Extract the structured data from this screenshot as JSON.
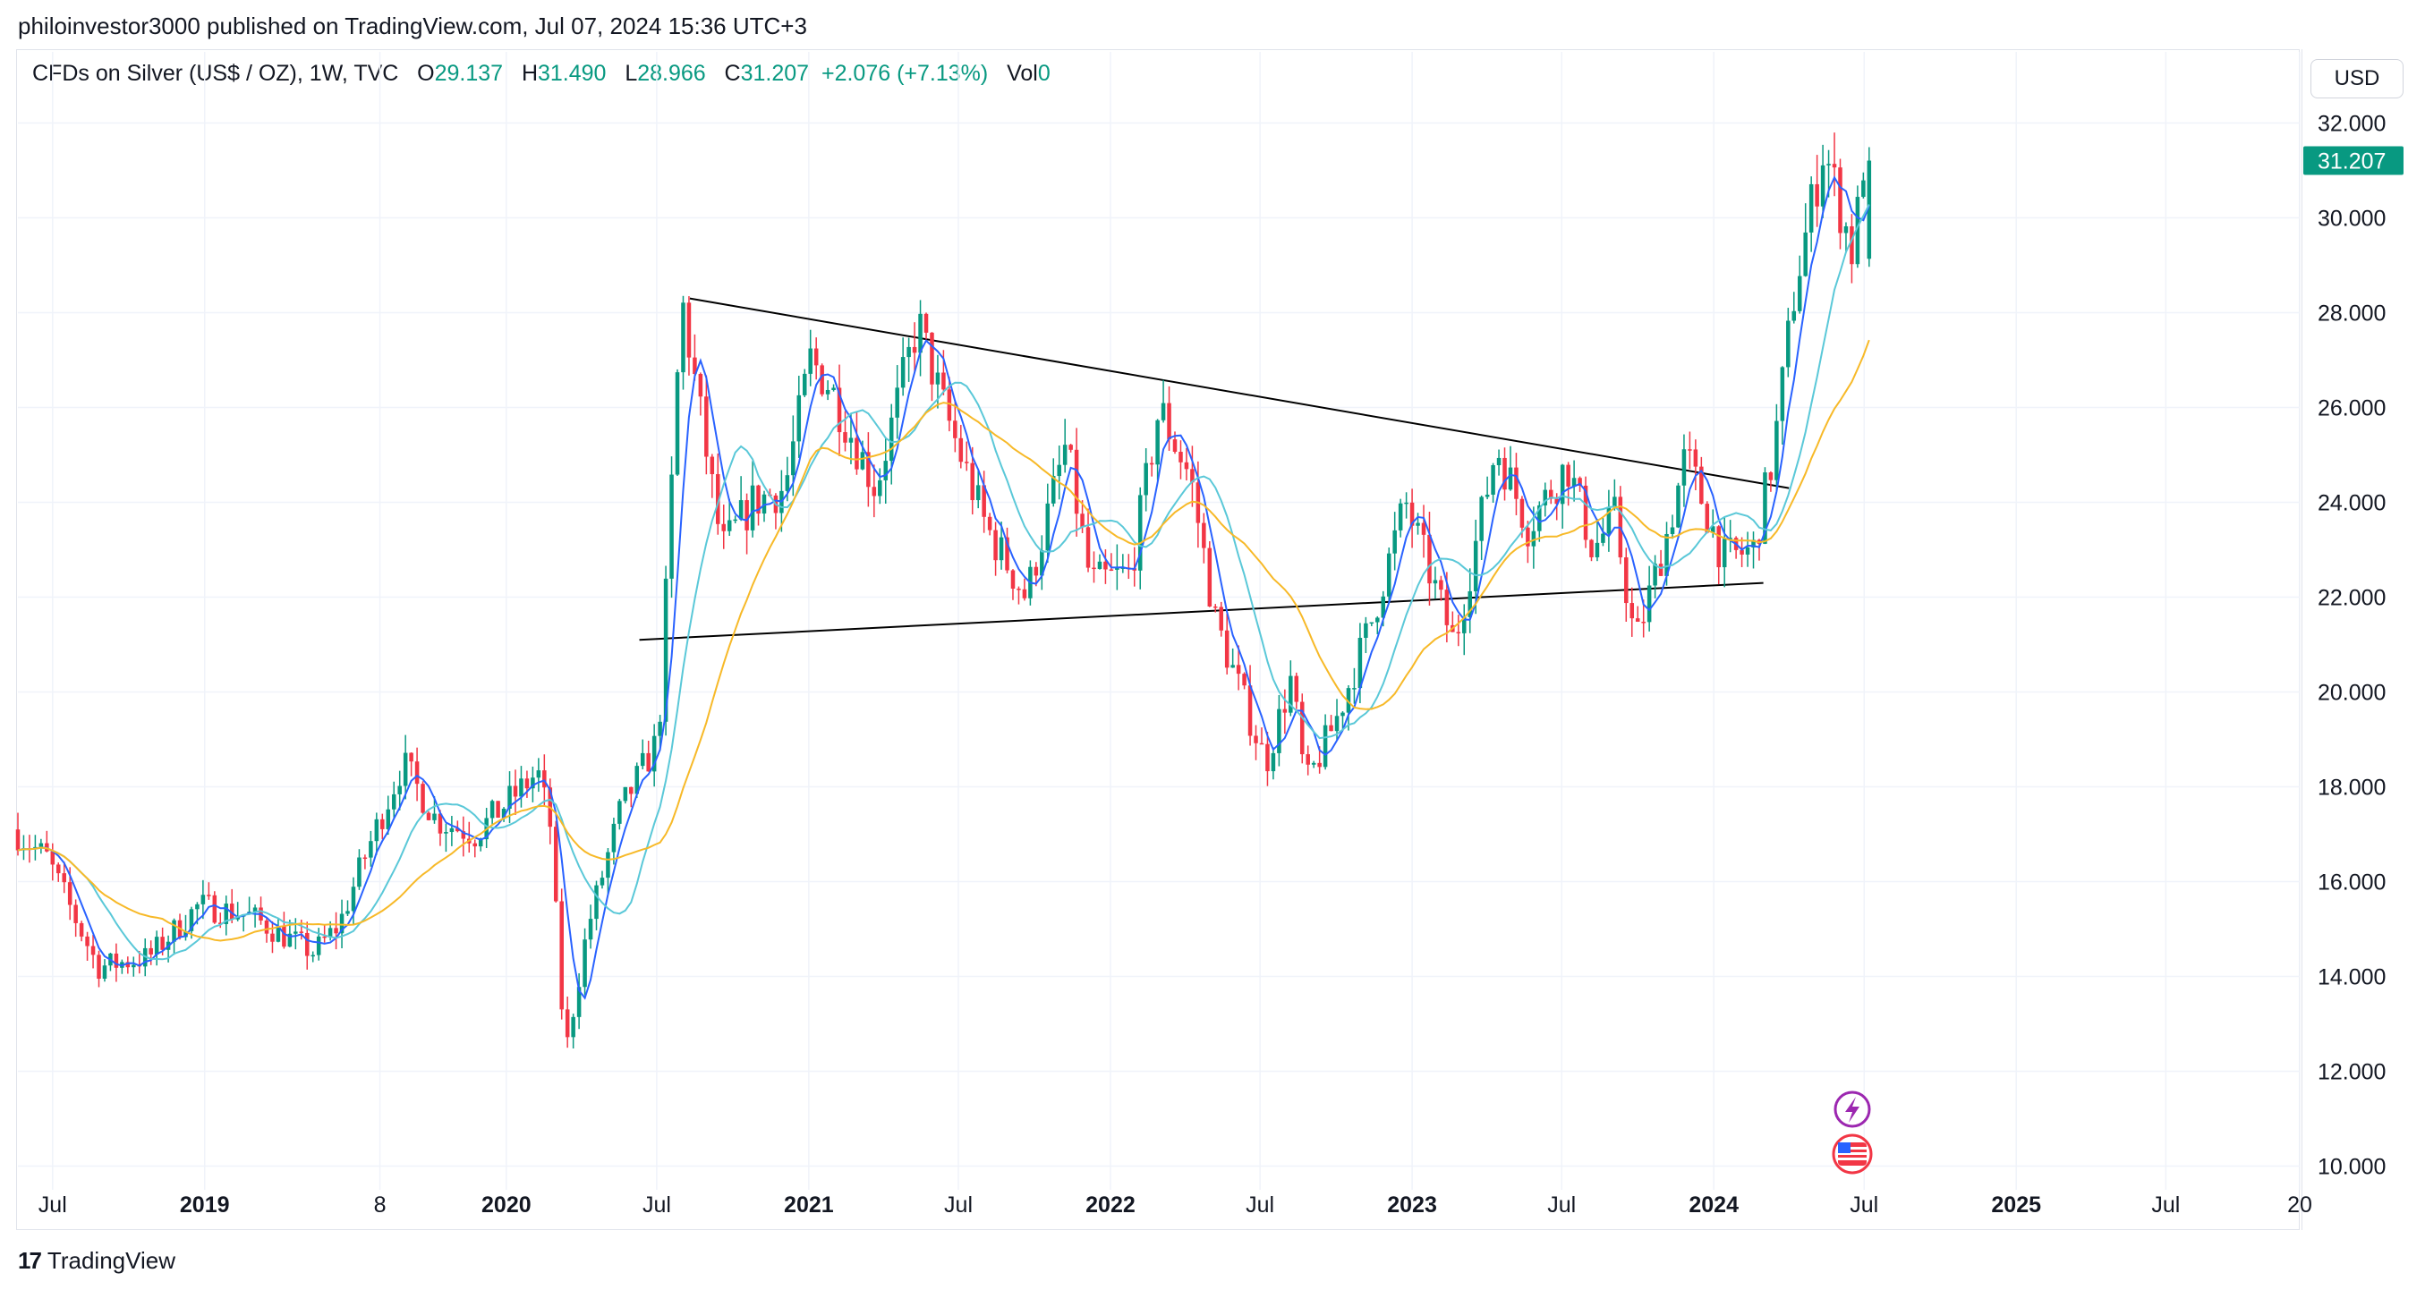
{
  "header": {
    "published": "philoinvestor3000 published on TradingView.com, Jul 07, 2024 15:36 UTC+3"
  },
  "legend": {
    "symbol": "CFDs on Silver (US$ / OZ), 1W, TVC",
    "o_label": "O",
    "o_value": "29.137",
    "h_label": "H",
    "h_value": "31.490",
    "l_label": "L",
    "l_value": "28.966",
    "c_label": "C",
    "c_value": "31.207",
    "change": "+2.076 (+7.13%)",
    "vol_label": "Vol",
    "vol_value": "0"
  },
  "currency_button": "USD",
  "footer": {
    "brand": "TradingView"
  },
  "colors": {
    "up": "#089981",
    "down": "#f23645",
    "ma_fast": "#2962ff",
    "ma_mid": "#5ac8d8",
    "ma_slow": "#f7b928",
    "trendline": "#000000"
  },
  "chart_data": {
    "type": "candlestick",
    "title": "CFDs on Silver (US$ / OZ), 1W, TVC",
    "y_axis": {
      "ticks": [
        "10.000",
        "12.000",
        "14.000",
        "16.000",
        "18.000",
        "20.000",
        "22.000",
        "24.000",
        "26.000",
        "28.000",
        "30.000",
        "32.000"
      ],
      "ylim": [
        9.5,
        33.5
      ]
    },
    "last_price_label": "31.207",
    "x_axis": {
      "ticks": [
        "Jul",
        "2019",
        "8",
        "2020",
        "Jul",
        "2021",
        "Jul",
        "2022",
        "Jul",
        "2023",
        "Jul",
        "2024",
        "Jul",
        "2025",
        "Jul",
        "20"
      ],
      "range": [
        "2018-05-20",
        "2025-12-10"
      ]
    },
    "key_points": [
      {
        "date": "2018-05-20",
        "price": 17.1
      },
      {
        "date": "2018-07-01",
        "price": 16.5
      },
      {
        "date": "2018-09-01",
        "price": 14.2
      },
      {
        "date": "2018-11-01",
        "price": 14.4
      },
      {
        "date": "2019-01-01",
        "price": 15.5
      },
      {
        "date": "2019-03-01",
        "price": 15.3
      },
      {
        "date": "2019-05-20",
        "price": 14.5
      },
      {
        "date": "2019-06-20",
        "price": 15.1
      },
      {
        "date": "2019-07-20",
        "price": 16.5
      },
      {
        "date": "2019-09-05",
        "price": 18.5
      },
      {
        "date": "2019-10-15",
        "price": 17.3
      },
      {
        "date": "2019-12-01",
        "price": 17.0
      },
      {
        "date": "2020-02-15",
        "price": 18.3
      },
      {
        "date": "2020-03-01",
        "price": 17.2
      },
      {
        "date": "2020-03-19",
        "price": 12.3
      },
      {
        "date": "2020-04-15",
        "price": 15.0
      },
      {
        "date": "2020-05-25",
        "price": 17.5
      },
      {
        "date": "2020-07-10",
        "price": 19.0
      },
      {
        "date": "2020-08-07",
        "price": 28.3
      },
      {
        "date": "2020-09-25",
        "price": 23.0
      },
      {
        "date": "2020-11-01",
        "price": 24.0
      },
      {
        "date": "2020-12-10",
        "price": 24.3
      },
      {
        "date": "2021-01-10",
        "price": 27.0
      },
      {
        "date": "2021-02-01",
        "price": 26.5
      },
      {
        "date": "2021-03-30",
        "price": 24.3
      },
      {
        "date": "2021-05-20",
        "price": 27.8
      },
      {
        "date": "2021-06-20",
        "price": 26.0
      },
      {
        "date": "2021-08-10",
        "price": 23.5
      },
      {
        "date": "2021-09-28",
        "price": 22.0
      },
      {
        "date": "2021-11-15",
        "price": 25.2
      },
      {
        "date": "2021-12-15",
        "price": 22.3
      },
      {
        "date": "2022-02-01",
        "price": 22.5
      },
      {
        "date": "2022-03-08",
        "price": 26.0
      },
      {
        "date": "2022-04-15",
        "price": 24.5
      },
      {
        "date": "2022-05-15",
        "price": 21.5
      },
      {
        "date": "2022-07-15",
        "price": 18.5
      },
      {
        "date": "2022-08-15",
        "price": 20.3
      },
      {
        "date": "2022-09-01",
        "price": 18.0
      },
      {
        "date": "2022-10-10",
        "price": 19.5
      },
      {
        "date": "2022-11-20",
        "price": 21.5
      },
      {
        "date": "2022-12-31",
        "price": 24.0
      },
      {
        "date": "2023-02-28",
        "price": 21.0
      },
      {
        "date": "2023-04-20",
        "price": 25.2
      },
      {
        "date": "2023-05-28",
        "price": 23.5
      },
      {
        "date": "2023-07-15",
        "price": 24.8
      },
      {
        "date": "2023-08-15",
        "price": 23.0
      },
      {
        "date": "2023-09-10",
        "price": 23.7
      },
      {
        "date": "2023-10-05",
        "price": 21.0
      },
      {
        "date": "2023-11-15",
        "price": 23.5
      },
      {
        "date": "2023-12-05",
        "price": 25.0
      },
      {
        "date": "2024-01-20",
        "price": 22.8
      },
      {
        "date": "2024-02-25",
        "price": 23.0
      },
      {
        "date": "2024-03-20",
        "price": 25.0
      },
      {
        "date": "2024-04-15",
        "price": 28.5
      },
      {
        "date": "2024-05-20",
        "price": 31.5
      },
      {
        "date": "2024-06-25",
        "price": 29.2
      },
      {
        "date": "2024-07-07",
        "price": 31.2
      }
    ],
    "last_bar": {
      "date": "2024-07-07",
      "open": 29.137,
      "high": 31.49,
      "low": 28.966,
      "close": 31.207
    },
    "trendlines": [
      {
        "from": {
          "date": "2020-08-10",
          "price": 28.3
        },
        "to": {
          "date": "2024-04-01",
          "price": 24.3
        }
      },
      {
        "from": {
          "date": "2020-06-10",
          "price": 21.1
        },
        "to": {
          "date": "2024-03-01",
          "price": 22.3
        }
      }
    ],
    "moving_averages": [
      {
        "color": "#2962ff",
        "period": 5
      },
      {
        "color": "#5ac8d8",
        "period": 13
      },
      {
        "color": "#f7b928",
        "period": 26
      }
    ],
    "grid": true
  }
}
